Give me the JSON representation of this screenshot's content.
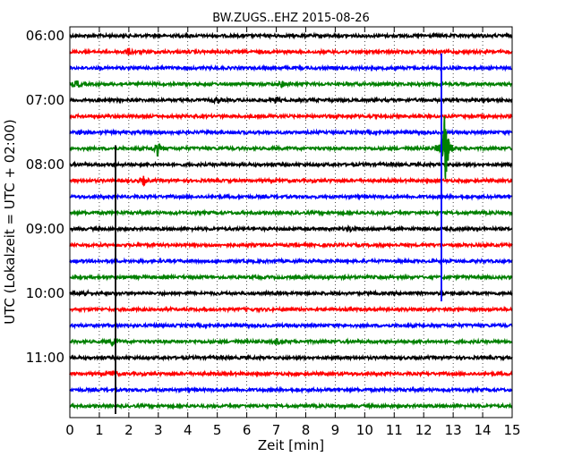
{
  "chart_data": {
    "type": "line",
    "title": "BW.ZUGS..EHZ 2015-08-26",
    "xlabel": "Zeit  [min]",
    "ylabel": "UTC (Lokalzeit = UTC + 02:00)",
    "xlim": [
      0,
      15
    ],
    "x_ticks": [
      "0",
      "1",
      "2",
      "3",
      "4",
      "5",
      "6",
      "7",
      "8",
      "9",
      "10",
      "11",
      "12",
      "13",
      "14",
      "15"
    ],
    "y_ticks": [
      "06:00",
      "07:00",
      "08:00",
      "09:00",
      "10:00",
      "11:00"
    ],
    "grid": true,
    "trace_colors": [
      "#000000",
      "#ff0000",
      "#0000ff",
      "#008000"
    ],
    "trace_start_times": [
      "06:00",
      "06:15",
      "06:30",
      "06:45",
      "07:00",
      "07:15",
      "07:30",
      "07:45",
      "08:00",
      "08:15",
      "08:30",
      "08:45",
      "09:00",
      "09:15",
      "09:30",
      "09:45",
      "10:00",
      "10:15",
      "10:30",
      "10:45",
      "11:00",
      "11:15",
      "11:30",
      "11:45"
    ],
    "events": [
      {
        "trace": 1,
        "minute": 2.0,
        "amplitude": 0.4
      },
      {
        "trace": 3,
        "minute": 0.25,
        "amplitude": 0.5
      },
      {
        "trace": 3,
        "minute": 7.2,
        "amplitude": 0.4
      },
      {
        "trace": 4,
        "minute": 5.0,
        "amplitude": 0.4
      },
      {
        "trace": 4,
        "minute": 7.0,
        "amplitude": 0.4
      },
      {
        "trace": 6,
        "minute": 0.4,
        "amplitude": 0.4
      },
      {
        "trace": 7,
        "minute": 2.95,
        "amplitude": 1.0
      },
      {
        "trace": 7,
        "minute": 12.65,
        "amplitude": 1.0
      },
      {
        "trace": 9,
        "minute": 2.5,
        "amplitude": 0.5
      },
      {
        "trace": 12,
        "minute": 9.5,
        "amplitude": 0.3
      },
      {
        "trace": 16,
        "minute": 0.5,
        "amplitude": 0.3
      },
      {
        "trace": 19,
        "minute": 1.45,
        "amplitude": 0.5
      },
      {
        "trace": 19,
        "minute": 7.0,
        "amplitude": 0.4
      },
      {
        "trace": 21,
        "minute": 1.45,
        "amplitude": 0.4
      }
    ],
    "spikes": [
      {
        "trace": 2,
        "minute": 12.6,
        "up": 0.9,
        "down": 14.5
      },
      {
        "trace": 8,
        "minute": 1.55,
        "up": 1.2,
        "down": 15.5
      }
    ]
  }
}
